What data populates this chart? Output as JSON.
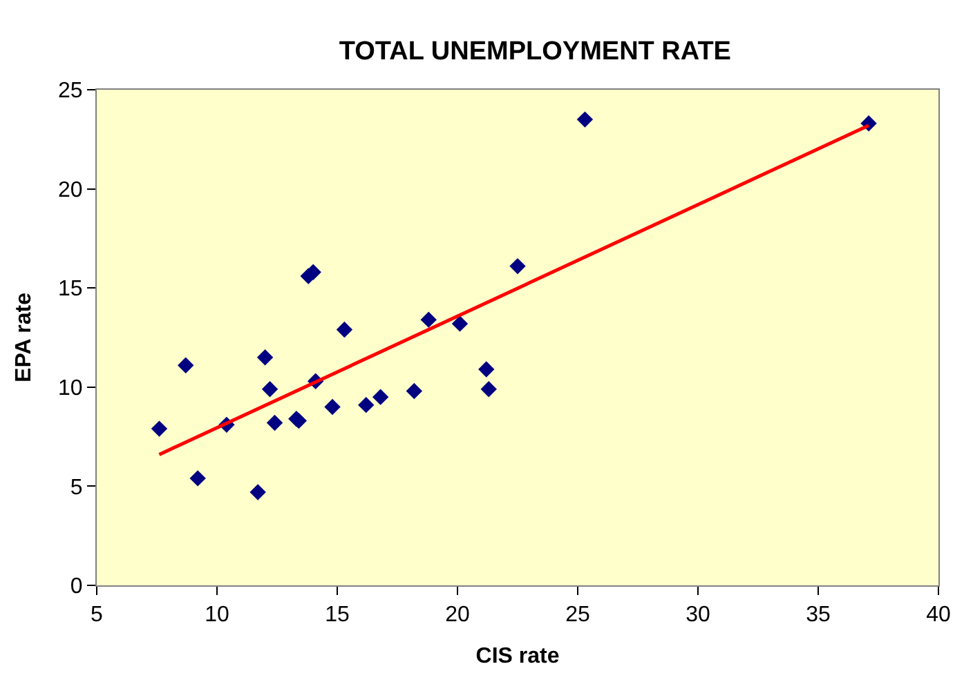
{
  "chart_data": {
    "type": "scatter",
    "title": "TOTAL UNEMPLOYMENT RATE",
    "xlabel": "CIS rate",
    "ylabel": "EPA rate",
    "xlim": [
      5,
      40
    ],
    "xticks": [
      5,
      10,
      15,
      20,
      25,
      30,
      35,
      40
    ],
    "ylim": [
      0,
      25
    ],
    "yticks": [
      0,
      5,
      10,
      15,
      20,
      25
    ],
    "grid": false,
    "legend": false,
    "series": [
      {
        "marker": "diamond",
        "color": "#000080",
        "x": [
          7.6,
          8.7,
          9.2,
          10.4,
          11.7,
          12.0,
          12.2,
          12.4,
          13.3,
          13.4,
          13.8,
          14.0,
          14.1,
          14.8,
          15.3,
          16.2,
          16.8,
          18.2,
          18.8,
          20.1,
          21.2,
          21.3,
          22.5,
          25.3,
          37.1
        ],
        "values": [
          7.9,
          11.1,
          5.4,
          8.1,
          4.7,
          11.5,
          9.9,
          8.2,
          8.4,
          8.3,
          15.6,
          15.8,
          10.3,
          9.0,
          12.9,
          9.1,
          9.5,
          9.8,
          13.4,
          13.2,
          10.9,
          9.9,
          16.1,
          23.5,
          23.3
        ]
      },
      {
        "type": "line",
        "marker": "none",
        "line_style": "solid",
        "color": "#ff0000",
        "x": [
          7.6,
          37.1
        ],
        "values": [
          6.6,
          23.2
        ]
      }
    ]
  }
}
